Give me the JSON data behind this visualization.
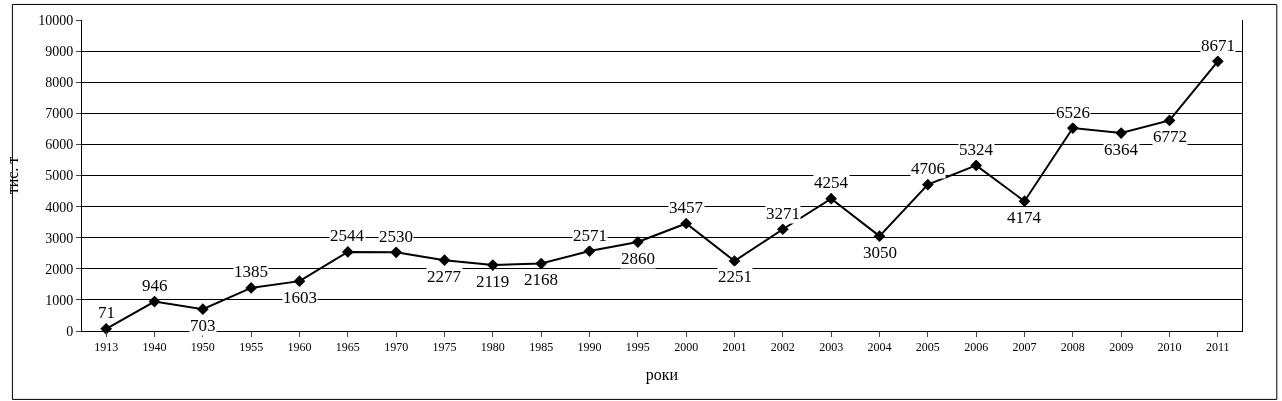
{
  "chart_data": {
    "type": "line",
    "xlabel": "роки",
    "ylabel": "тис. т",
    "categories": [
      "1913",
      "1940",
      "1950",
      "1955",
      "1960",
      "1965",
      "1970",
      "1975",
      "1980",
      "1985",
      "1990",
      "1995",
      "2000",
      "2001",
      "2002",
      "2003",
      "2004",
      "2005",
      "2006",
      "2007",
      "2008",
      "2009",
      "2010",
      "2011"
    ],
    "series": [
      {
        "color": "#000000",
        "values": [
          71,
          946,
          703,
          1385,
          1603,
          2544,
          2530,
          2277,
          2119,
          2168,
          2571,
          2860,
          3457,
          2251,
          3271,
          4254,
          3050,
          4706,
          5324,
          4174,
          6526,
          6364,
          6772,
          8671
        ]
      }
    ],
    "ylim": [
      0,
      10000
    ],
    "yticks": [
      0,
      1000,
      2000,
      3000,
      4000,
      5000,
      6000,
      7000,
      8000,
      9000,
      10000
    ],
    "grid": "y",
    "marker": "diamond",
    "line_style": "solid",
    "data_labels": true
  }
}
